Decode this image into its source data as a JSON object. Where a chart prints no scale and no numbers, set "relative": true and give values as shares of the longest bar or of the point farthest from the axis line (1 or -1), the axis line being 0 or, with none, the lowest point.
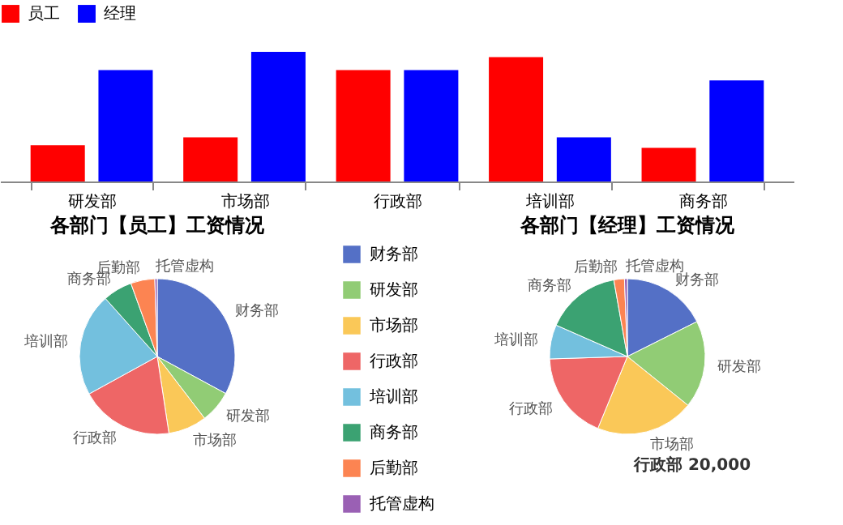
{
  "chart_data": [
    {
      "type": "bar",
      "relative": true,
      "legend": "top",
      "categories": [
        "研发部",
        "市场部",
        "行政部",
        "培训部",
        "商务部"
      ],
      "series": [
        {
          "name": "员工",
          "color": "#ff0000",
          "values": [
            0.28,
            0.34,
            0.86,
            0.96,
            0.26
          ]
        },
        {
          "name": "经理",
          "color": "#0000ff",
          "values": [
            0.86,
            1,
            0.86,
            0.34,
            0.78
          ]
        }
      ]
    },
    {
      "type": "pie",
      "title": "各部门【员工】工资情况",
      "legend": "right",
      "categories": [
        "财务部",
        "研发部",
        "市场部",
        "行政部",
        "培训部",
        "商务部",
        "后勤部",
        "托管虚构"
      ],
      "values": [
        32.9,
        6.7,
        8,
        19.4,
        21.4,
        6.1,
        5,
        0.5
      ],
      "colors": [
        "#5470c6",
        "#91cc75",
        "#fac858",
        "#ee6666",
        "#73c0de",
        "#3ba272",
        "#fc8452",
        "#9a60b4"
      ]
    },
    {
      "type": "pie",
      "title": "各部门【经理】工资情况",
      "categories": [
        "财务部",
        "研发部",
        "市场部",
        "行政部",
        "培训部",
        "商务部",
        "后勤部",
        "托管虚构"
      ],
      "values": [
        17.6,
        18.2,
        20.4,
        18.3,
        7.1,
        15.6,
        2.2,
        0.6
      ],
      "colors": [
        "#5470c6",
        "#91cc75",
        "#fac858",
        "#ee6666",
        "#73c0de",
        "#3ba272",
        "#fc8452",
        "#9a60b4"
      ],
      "annotations": [
        "行政部  20,000"
      ]
    }
  ]
}
